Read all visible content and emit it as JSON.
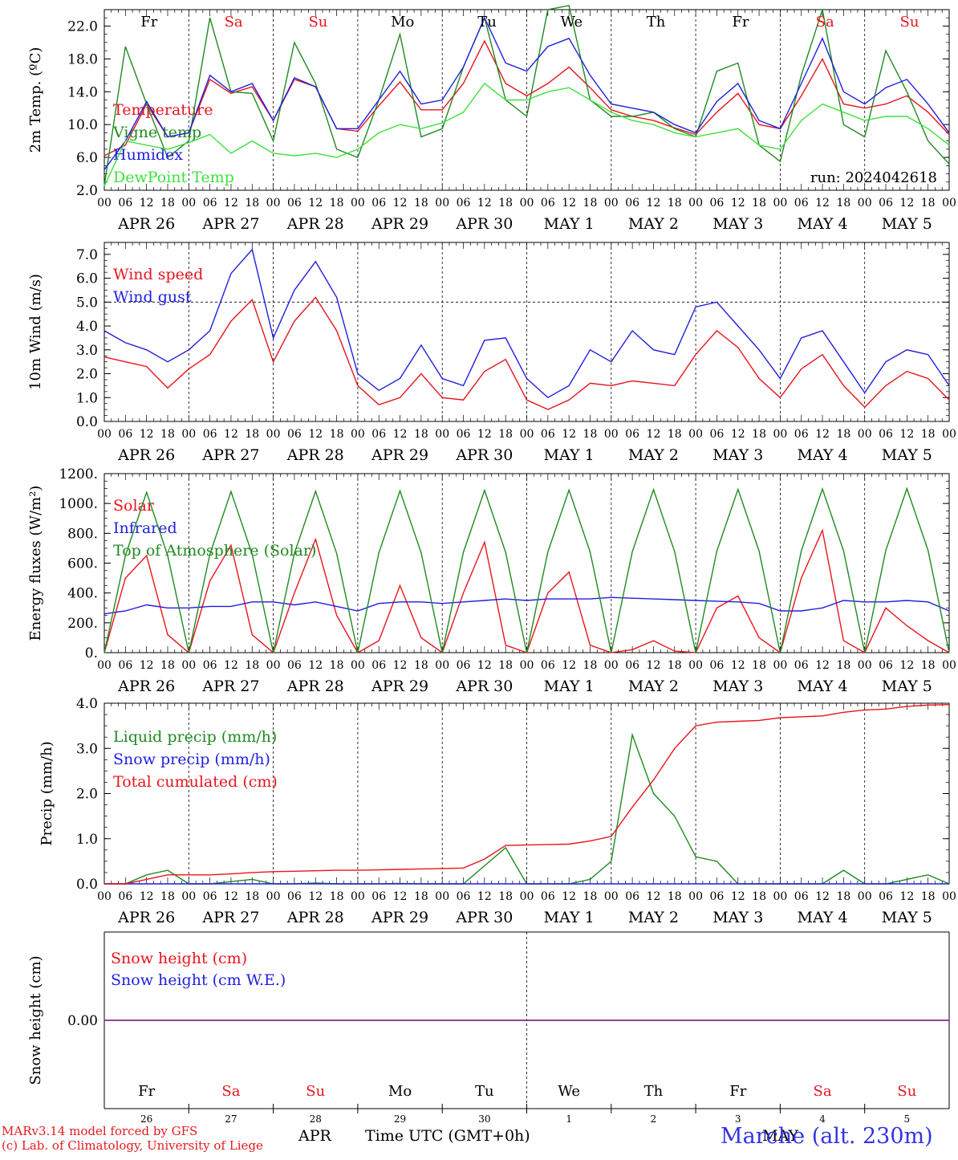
{
  "colors": {
    "red": "#e8141c",
    "green": "#1f8a1f",
    "blue": "#1f1fe0",
    "lightgreen": "#3fe03f",
    "purple": "#7a2a9a",
    "weekend": "#e8141c",
    "weekday": "#000000"
  },
  "days": {
    "day_abbrevs": [
      "Fr",
      "Sa",
      "Su",
      "Mo",
      "Tu",
      "We",
      "Th",
      "Fr",
      "Sa",
      "Su"
    ],
    "weekend_flags": [
      false,
      true,
      true,
      false,
      false,
      false,
      false,
      false,
      true,
      true
    ],
    "date_labels": [
      "APR 26",
      "APR 27",
      "APR 28",
      "APR 29",
      "APR 30",
      "MAY  1",
      "MAY  2",
      "MAY  3",
      "MAY  4",
      "MAY  5"
    ],
    "day_numbers": [
      "26",
      "27",
      "28",
      "29",
      "30",
      "1",
      "2",
      "3",
      "4",
      "5"
    ],
    "hour_ticks": [
      "00",
      "06",
      "12",
      "18"
    ],
    "final_tick": "00"
  },
  "footer": {
    "model_line": "MARv3.14 model forced by GFS",
    "lab_line": "(c) Lab. of Climatology, University of Liege",
    "axis_title": "Time UTC (GMT+0h)",
    "apr_label": "APR",
    "may_label": "MAY",
    "station": "Marche (alt. 230m)"
  },
  "chart_data": [
    {
      "type": "line",
      "ylabel": "2m Temp. (ºC)",
      "ylim": [
        2.0,
        24.0
      ],
      "yticks": [
        "2.0",
        "6.0",
        "10.0",
        "14.0",
        "18.0",
        "22.0"
      ],
      "ytick_values": [
        2,
        6,
        10,
        14,
        18,
        22
      ],
      "run_label": "run: 2024042618",
      "hourly_step": 6,
      "series": [
        {
          "name": "Temperature",
          "color": "red",
          "values": [
            6.2,
            7.5,
            12.5,
            8.5,
            9.0,
            15.5,
            13.8,
            14.6,
            10.5,
            15.5,
            14.6,
            9.5,
            9.2,
            12.3,
            15.2,
            11.8,
            11.8,
            15.0,
            20.2,
            15.0,
            13.5,
            15.0,
            17.0,
            14.5,
            11.8,
            11.0,
            10.5,
            9.6,
            8.8,
            11.5,
            13.8,
            10.0,
            9.5,
            13.5,
            18.0,
            12.5,
            12.0,
            12.5,
            13.5,
            11.5,
            8.8
          ]
        },
        {
          "name": "Vigne temp",
          "color": "green",
          "values": [
            2.6,
            19.5,
            12.5,
            6.0,
            8.0,
            23.0,
            14.0,
            13.8,
            8.0,
            20.0,
            15.0,
            7.0,
            6.0,
            13.0,
            21.0,
            8.5,
            9.5,
            17.0,
            23.0,
            13.0,
            11.0,
            24.0,
            24.5,
            13.0,
            11.0,
            11.0,
            11.5,
            9.5,
            8.5,
            16.5,
            17.5,
            7.5,
            5.5,
            16.0,
            24.0,
            10.0,
            8.5,
            19.0,
            14.0,
            8.0,
            5.2
          ]
        },
        {
          "name": "Humidex",
          "color": "blue",
          "values": [
            4.5,
            8.0,
            12.8,
            8.5,
            9.0,
            16.0,
            14.0,
            15.0,
            10.5,
            15.7,
            14.6,
            9.5,
            9.5,
            13.0,
            16.5,
            12.5,
            13.0,
            17.0,
            23.0,
            17.5,
            16.5,
            19.5,
            20.5,
            16.0,
            12.5,
            12.0,
            11.5,
            10.0,
            9.0,
            12.8,
            15.0,
            10.5,
            9.5,
            15.0,
            20.5,
            14.0,
            12.5,
            14.5,
            15.5,
            12.5,
            9.0
          ]
        },
        {
          "name": "DewPoint Temp",
          "color": "lightgreen",
          "values": [
            2.5,
            8.0,
            7.5,
            7.0,
            7.8,
            8.8,
            6.5,
            8.0,
            6.5,
            6.2,
            6.5,
            6.0,
            7.0,
            9.0,
            10.0,
            9.5,
            10.2,
            11.5,
            15.0,
            13.0,
            13.0,
            14.0,
            14.5,
            13.0,
            11.5,
            10.5,
            10.0,
            9.0,
            8.5,
            9.0,
            9.5,
            7.5,
            7.0,
            10.5,
            12.5,
            11.5,
            10.5,
            11.0,
            11.0,
            9.5,
            7.5
          ]
        }
      ]
    },
    {
      "type": "line",
      "ylabel": "10m Wind (m/s)",
      "ylim": [
        0.0,
        7.5
      ],
      "yticks": [
        "0.0",
        "1.0",
        "2.0",
        "3.0",
        "4.0",
        "5.0",
        "6.0",
        "7.0"
      ],
      "ytick_values": [
        0,
        1,
        2,
        3,
        4,
        5,
        6,
        7
      ],
      "hline": 5.0,
      "hourly_step": 6,
      "series": [
        {
          "name": "Wind speed",
          "color": "red",
          "values": [
            2.7,
            2.5,
            2.3,
            1.4,
            2.2,
            2.8,
            4.2,
            5.1,
            2.5,
            4.2,
            5.2,
            3.8,
            1.5,
            0.7,
            1.0,
            2.0,
            1.0,
            0.9,
            2.1,
            2.6,
            0.9,
            0.5,
            0.9,
            1.6,
            1.5,
            1.7,
            1.6,
            1.5,
            2.8,
            3.8,
            3.1,
            1.8,
            1.0,
            2.2,
            2.8,
            1.5,
            0.6,
            1.5,
            2.1,
            1.8,
            0.9
          ]
        },
        {
          "name": "Wind gust",
          "color": "blue",
          "values": [
            3.8,
            3.3,
            3.0,
            2.5,
            3.0,
            3.8,
            6.2,
            7.2,
            3.5,
            5.5,
            6.7,
            5.2,
            2.0,
            1.3,
            1.8,
            3.2,
            1.8,
            1.5,
            3.4,
            3.5,
            1.8,
            1.0,
            1.5,
            3.0,
            2.5,
            3.8,
            3.0,
            2.8,
            4.8,
            5.0,
            4.0,
            3.0,
            1.8,
            3.5,
            3.8,
            2.5,
            1.2,
            2.5,
            3.0,
            2.8,
            1.5
          ]
        }
      ]
    },
    {
      "type": "line",
      "ylabel": "Energy fluxes (W/m²)",
      "ylim": [
        0,
        1200
      ],
      "yticks": [
        "0.",
        "200.",
        "400.",
        "600.",
        "800.",
        "1000.",
        "1200."
      ],
      "ytick_values": [
        0,
        200,
        400,
        600,
        800,
        1000,
        1200
      ],
      "hourly_step": 6,
      "series": [
        {
          "name": "Solar",
          "color": "red",
          "values": [
            0,
            500,
            650,
            120,
            0,
            480,
            720,
            120,
            0,
            400,
            760,
            250,
            0,
            80,
            450,
            100,
            0,
            400,
            740,
            50,
            0,
            400,
            540,
            50,
            0,
            20,
            80,
            10,
            0,
            300,
            380,
            100,
            0,
            500,
            820,
            80,
            0,
            300,
            180,
            80,
            0
          ]
        },
        {
          "name": "Infrared",
          "color": "blue",
          "values": [
            260,
            280,
            320,
            300,
            300,
            310,
            310,
            340,
            340,
            320,
            340,
            310,
            280,
            330,
            340,
            340,
            330,
            340,
            350,
            360,
            350,
            360,
            360,
            360,
            370,
            365,
            360,
            355,
            350,
            345,
            340,
            330,
            280,
            280,
            300,
            350,
            340,
            340,
            350,
            340,
            280
          ]
        },
        {
          "name": "Top of Atmosphere (Solar)",
          "color": "green",
          "values": [
            0,
            650,
            1075,
            650,
            0,
            660,
            1080,
            660,
            0,
            665,
            1082,
            665,
            0,
            670,
            1085,
            670,
            0,
            672,
            1088,
            672,
            0,
            675,
            1090,
            675,
            0,
            677,
            1093,
            677,
            0,
            680,
            1095,
            680,
            0,
            682,
            1098,
            682,
            0,
            685,
            1100,
            685,
            0
          ]
        }
      ]
    },
    {
      "type": "line",
      "ylabel": "Precip (mm/h)",
      "ylim": [
        0.0,
        4.0
      ],
      "yticks": [
        "0.0",
        "1.0",
        "2.0",
        "3.0",
        "4.0"
      ],
      "ytick_values": [
        0,
        1,
        2,
        3,
        4
      ],
      "hourly_step": 6,
      "series": [
        {
          "name": "Liquid precip (mm/h)",
          "color": "green",
          "values": [
            0,
            0,
            0.2,
            0.3,
            0,
            0,
            0.05,
            0.1,
            0,
            0,
            0.02,
            0,
            0,
            0,
            0.01,
            0,
            0,
            0,
            0.4,
            0.8,
            0,
            0,
            0,
            0.1,
            0.5,
            3.3,
            2.0,
            1.5,
            0.6,
            0.5,
            0,
            0,
            0,
            0,
            0,
            0.3,
            0,
            0,
            0.1,
            0.2,
            0
          ]
        },
        {
          "name": "Snow precip (mm/h)",
          "color": "blue",
          "values": [
            0,
            0,
            0,
            0,
            0,
            0,
            0,
            0,
            0,
            0,
            0,
            0,
            0,
            0,
            0,
            0,
            0,
            0,
            0,
            0,
            0,
            0,
            0,
            0,
            0,
            0,
            0,
            0,
            0,
            0,
            0,
            0,
            0,
            0,
            0,
            0,
            0,
            0,
            0,
            0,
            0
          ]
        },
        {
          "name": "Total cumulated (cm)",
          "color": "red",
          "values": [
            0,
            0,
            0.1,
            0.2,
            0.2,
            0.2,
            0.22,
            0.25,
            0.27,
            0.28,
            0.29,
            0.3,
            0.3,
            0.31,
            0.32,
            0.33,
            0.34,
            0.35,
            0.55,
            0.85,
            0.86,
            0.87,
            0.88,
            0.95,
            1.05,
            1.7,
            2.3,
            3.0,
            3.5,
            3.58,
            3.6,
            3.62,
            3.68,
            3.7,
            3.72,
            3.8,
            3.85,
            3.87,
            3.93,
            3.96,
            3.97
          ]
        }
      ]
    },
    {
      "type": "line",
      "ylabel": "Snow height (cm)",
      "yticks": [
        "0.00"
      ],
      "ytick_values": [
        0
      ],
      "ylim": [
        -1,
        1
      ],
      "series": [
        {
          "name": "Snow height (cm)",
          "color": "red",
          "values": [
            0,
            0
          ]
        },
        {
          "name": "Snow height (cm W.E.)",
          "color": "blue",
          "values": [
            0,
            0
          ]
        }
      ]
    }
  ]
}
